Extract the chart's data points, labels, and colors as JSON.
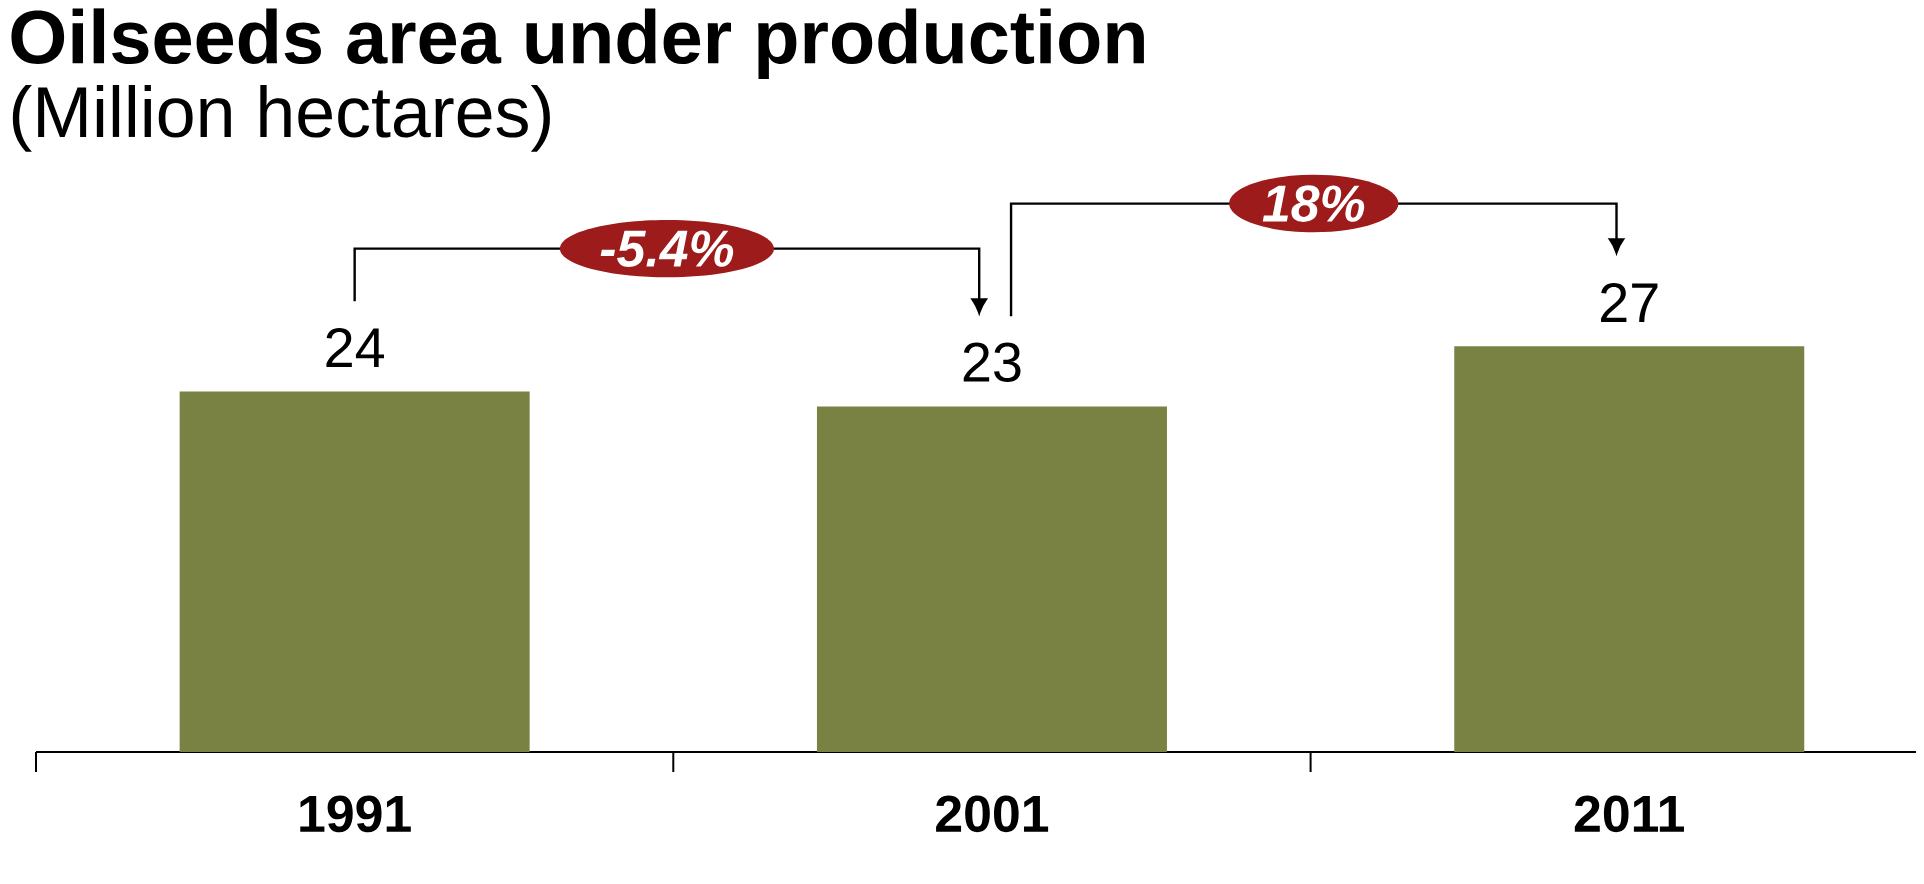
{
  "chart_data": {
    "type": "bar",
    "title": "Oilseeds area under production",
    "subtitle": "(Million hectares)",
    "categories": [
      "1991",
      "2001",
      "2011"
    ],
    "values": [
      24,
      23,
      27
    ],
    "color": "#7a8243",
    "data_labels": true,
    "annotations": [
      "-5.4%",
      "18%"
    ]
  }
}
